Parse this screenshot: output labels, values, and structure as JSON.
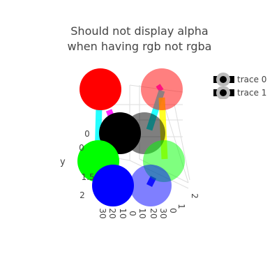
{
  "chart_data": {
    "type": "scatter3d",
    "title_lines": [
      "Should not display alpha",
      "when having rgb not rgba"
    ],
    "legend": {
      "placement": "top-right",
      "entries": [
        "trace 0",
        "trace 1"
      ]
    },
    "axes": {
      "x": {
        "ticks": [
          "0",
          "1",
          "2"
        ]
      },
      "y": {
        "title": "y",
        "ticks": [
          "0",
          "0",
          "1.5",
          "2"
        ]
      },
      "z": {
        "ticks": [
          "30",
          "20",
          "10",
          "0",
          "10",
          "20",
          "30"
        ]
      }
    },
    "series": [
      {
        "name": "trace 0",
        "mode": "markers+lines",
        "markers": [
          {
            "color": "#ff0000"
          },
          {
            "color": "#000000"
          },
          {
            "color": "#00ff00"
          },
          {
            "color": "#0000ff"
          }
        ],
        "line_colors": [
          "#ff0000",
          "#ff00ff",
          "#00ffff",
          "#0000ff"
        ]
      },
      {
        "name": "trace 1",
        "mode": "markers+lines",
        "markers": [
          {
            "color": "#ff0000",
            "opacity": 0.5
          },
          {
            "color": "#000000",
            "opacity": 0.5
          },
          {
            "color": "#00ff00",
            "opacity": 0.5
          },
          {
            "color": "#0000ff",
            "opacity": 0.5
          }
        ],
        "line_colors": [
          "#ff00ff",
          "#00ffff",
          "#ffff00",
          "#0000ff"
        ]
      }
    ]
  }
}
